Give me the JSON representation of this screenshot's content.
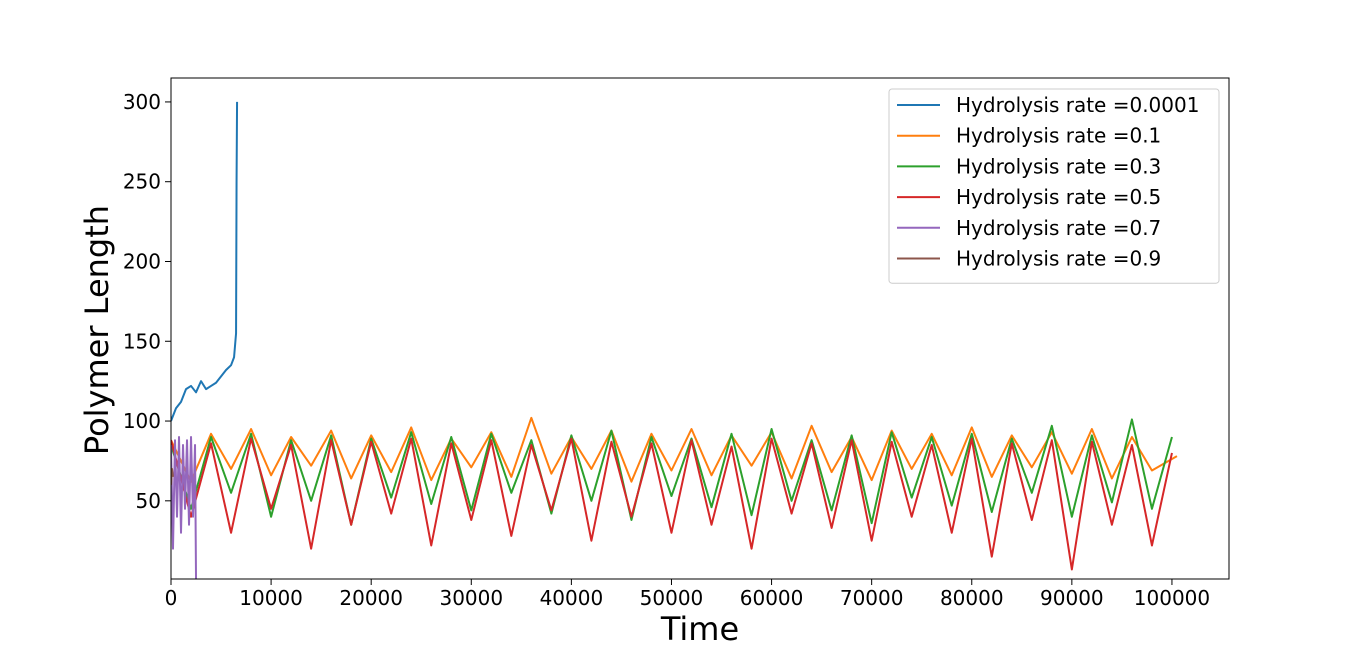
{
  "chart_data": {
    "type": "line",
    "x_label": "Time",
    "y_label": "Polymer Length",
    "xlim": [
      0,
      105700
    ],
    "ylim": [
      1,
      315
    ],
    "xticks": [
      0,
      10000,
      20000,
      30000,
      40000,
      50000,
      60000,
      70000,
      80000,
      90000,
      100000
    ],
    "yticks": [
      50,
      100,
      150,
      200,
      250,
      300
    ],
    "grid": false,
    "legend": "upper right",
    "series": [
      {
        "name": "Hydrolysis rate =0.0001",
        "color": "#1f77b4",
        "x": [
          0,
          500,
          1000,
          1500,
          2000,
          2500,
          3000,
          3500,
          4000,
          4500,
          5000,
          5500,
          6000,
          6300,
          6500,
          6550,
          6600
        ],
        "values": [
          100,
          108,
          112,
          120,
          122,
          118,
          125,
          120,
          122,
          124,
          128,
          132,
          135,
          140,
          155,
          250,
          300
        ]
      },
      {
        "name": "Hydrolysis rate =0.1",
        "color": "#ff7f0e",
        "x": [
          0,
          2000,
          4000,
          6000,
          8000,
          10000,
          12000,
          14000,
          16000,
          18000,
          20000,
          22000,
          24000,
          26000,
          28000,
          30000,
          32000,
          34000,
          36000,
          38000,
          40000,
          42000,
          44000,
          46000,
          48000,
          50000,
          52000,
          54000,
          56000,
          58000,
          60000,
          62000,
          64000,
          66000,
          68000,
          70000,
          72000,
          74000,
          76000,
          78000,
          80000,
          82000,
          84000,
          86000,
          88000,
          90000,
          92000,
          94000,
          96000,
          98000,
          100500
        ],
        "values": [
          88,
          62,
          92,
          70,
          95,
          66,
          90,
          72,
          94,
          64,
          91,
          68,
          96,
          63,
          89,
          71,
          93,
          65,
          102,
          67,
          90,
          70,
          94,
          62,
          92,
          69,
          95,
          66,
          91,
          72,
          93,
          64,
          97,
          68,
          90,
          63,
          94,
          70,
          92,
          66,
          96,
          65,
          91,
          71,
          93,
          67,
          95,
          64,
          90,
          69,
          78
        ]
      },
      {
        "name": "Hydrolysis rate =0.3",
        "color": "#2ca02c",
        "x": [
          0,
          2000,
          4000,
          6000,
          8000,
          10000,
          12000,
          14000,
          16000,
          18000,
          20000,
          22000,
          24000,
          26000,
          28000,
          30000,
          32000,
          34000,
          36000,
          38000,
          40000,
          42000,
          44000,
          46000,
          48000,
          50000,
          52000,
          54000,
          56000,
          58000,
          60000,
          62000,
          64000,
          66000,
          68000,
          70000,
          72000,
          74000,
          76000,
          78000,
          80000,
          82000,
          84000,
          86000,
          88000,
          90000,
          92000,
          94000,
          96000,
          98000,
          100000
        ],
        "values": [
          85,
          45,
          90,
          55,
          92,
          40,
          88,
          50,
          91,
          35,
          89,
          52,
          93,
          48,
          90,
          44,
          92,
          55,
          88,
          42,
          91,
          50,
          94,
          38,
          90,
          53,
          89,
          46,
          92,
          41,
          95,
          50,
          88,
          44,
          91,
          36,
          93,
          52,
          90,
          47,
          92,
          43,
          89,
          55,
          97,
          40,
          91,
          49,
          101,
          45,
          90
        ]
      },
      {
        "name": "Hydrolysis rate =0.5",
        "color": "#d62728",
        "x": [
          0,
          2000,
          4000,
          6000,
          8000,
          10000,
          12000,
          14000,
          16000,
          18000,
          20000,
          22000,
          24000,
          26000,
          28000,
          30000,
          32000,
          34000,
          36000,
          38000,
          40000,
          42000,
          44000,
          46000,
          48000,
          50000,
          52000,
          54000,
          56000,
          58000,
          60000,
          62000,
          64000,
          66000,
          68000,
          70000,
          72000,
          74000,
          76000,
          78000,
          80000,
          82000,
          84000,
          86000,
          88000,
          90000,
          92000,
          94000,
          96000,
          98000,
          100000
        ],
        "values": [
          88,
          40,
          86,
          30,
          89,
          45,
          85,
          20,
          88,
          35,
          87,
          42,
          89,
          22,
          86,
          38,
          88,
          28,
          85,
          44,
          89,
          25,
          87,
          40,
          86,
          30,
          88,
          35,
          84,
          20,
          89,
          42,
          86,
          33,
          88,
          25,
          87,
          40,
          85,
          30,
          89,
          15,
          86,
          38,
          88,
          7,
          87,
          35,
          85,
          22,
          80
        ]
      },
      {
        "name": "Hydrolysis rate =0.7",
        "color": "#9467bd",
        "x": [
          0,
          200,
          400,
          600,
          800,
          1000,
          1200,
          1400,
          1600,
          1800,
          2000,
          2200,
          2400,
          2500
        ],
        "values": [
          85,
          20,
          88,
          40,
          90,
          30,
          85,
          45,
          88,
          35,
          90,
          40,
          85,
          1
        ]
      },
      {
        "name": "Hydrolysis rate =0.9",
        "color": "#8c564b",
        "x": [
          0,
          100,
          200
        ],
        "values": [
          60,
          70,
          65
        ]
      }
    ]
  }
}
